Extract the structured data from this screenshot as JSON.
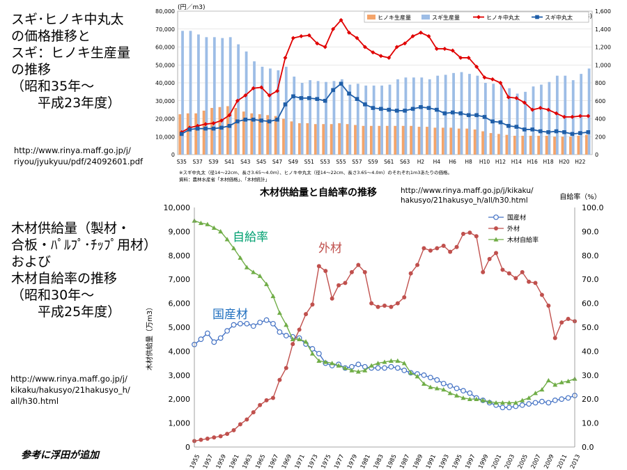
{
  "slide": {
    "top_title": "スギ･ヒノキ中丸太\nの価格推移と\nスギ：ヒノキ生産量\nの推移\n（昭和35年～\n　　平成23年度）",
    "top_url": "http://www.rinya.maff.go.jp/j/\nriyou/jyukyuu/pdf/24092601.pdf",
    "bottom_title": "木材供給量（製材・\n合板・ﾊﾟﾙﾌﾟ･ﾁｯﾌﾟ用材）\nおよび\n木材自給率の推移\n（昭和30年～\n　　平成25年度）",
    "bottom_url": "http://www.rinya.maff.go.jp/j/\nkikaku/hakusyo/21hakusyo_h/\nall/h30.html",
    "footer_note": "参考に浮田が追加",
    "middle_url": "http://www.rinya.maff.go.jp/j/kikaku/\nhakusyo/21hakusyo_h/all/h30.html"
  },
  "chart_data": [
    {
      "type": "bar",
      "left_unit": "(円／m3)",
      "right_unit": "(万m3)",
      "left_ylim": [
        0,
        80000
      ],
      "right_ylim": [
        0,
        1600
      ],
      "left_ticks": [
        "0",
        "10,000",
        "20,000",
        "30,000",
        "40,000",
        "50,000",
        "60,000",
        "70,000",
        "80,000"
      ],
      "right_ticks": [
        "0",
        "200",
        "400",
        "600",
        "800",
        "1,000",
        "1,200",
        "1,400",
        "1,600"
      ],
      "categories": [
        "S35",
        "S36",
        "S37",
        "S38",
        "S39",
        "S40",
        "S41",
        "S42",
        "S43",
        "S44",
        "S45",
        "S46",
        "S47",
        "S48",
        "S49",
        "S50",
        "S51",
        "S52",
        "S53",
        "S54",
        "S55",
        "S56",
        "S57",
        "S58",
        "S59",
        "S60",
        "S61",
        "S62",
        "S63",
        "H1",
        "H2",
        "H3",
        "H4",
        "H5",
        "H6",
        "H7",
        "H8",
        "H9",
        "H10",
        "H11",
        "H12",
        "H13",
        "H14",
        "H15",
        "H16",
        "H17",
        "H18",
        "H19",
        "H20",
        "H21",
        "H22",
        "H23"
      ],
      "tick_labels": [
        "S35",
        "S37",
        "S39",
        "S41",
        "S43",
        "S45",
        "S47",
        "S49",
        "S51",
        "S53",
        "S55",
        "S57",
        "S59",
        "S61",
        "S63",
        "H2",
        "H4",
        "H6",
        "H8",
        "H10",
        "H12",
        "H14",
        "H16",
        "H18",
        "H20",
        "H22"
      ],
      "series": [
        {
          "name": "ヒノキ生産量",
          "kind": "bar",
          "axis": "right",
          "color": "#f4a46a",
          "values": [
            450,
            460,
            460,
            490,
            520,
            530,
            540,
            520,
            480,
            460,
            450,
            440,
            430,
            400,
            370,
            350,
            350,
            340,
            340,
            340,
            350,
            340,
            330,
            320,
            320,
            320,
            320,
            320,
            320,
            320,
            310,
            310,
            300,
            300,
            300,
            290,
            290,
            280,
            260,
            240,
            230,
            220,
            210,
            210,
            210,
            210,
            210,
            200,
            200,
            200,
            210,
            220
          ]
        },
        {
          "name": "スギ生産量",
          "kind": "bar",
          "axis": "right",
          "color": "#9dbde6",
          "values": [
            1380,
            1380,
            1340,
            1310,
            1310,
            1300,
            1310,
            1230,
            1150,
            1040,
            980,
            960,
            940,
            980,
            870,
            800,
            830,
            820,
            810,
            820,
            840,
            780,
            790,
            770,
            770,
            770,
            780,
            840,
            860,
            860,
            860,
            840,
            880,
            890,
            910,
            920,
            900,
            880,
            800,
            790,
            780,
            740,
            680,
            700,
            760,
            780,
            810,
            880,
            880,
            830,
            900,
            960
          ]
        },
        {
          "name": "ヒノキ中丸太",
          "kind": "line",
          "axis": "left",
          "color": "#e00000",
          "marker": "diamond",
          "values": [
            12500,
            15000,
            16000,
            17000,
            17500,
            19000,
            22000,
            30000,
            33000,
            37000,
            37500,
            33000,
            35500,
            54000,
            65000,
            66000,
            66500,
            62000,
            60000,
            70000,
            75000,
            68000,
            65000,
            60000,
            57000,
            55000,
            54000,
            60000,
            62000,
            66000,
            68000,
            66000,
            59000,
            59000,
            58000,
            54000,
            54000,
            49000,
            43000,
            42000,
            40000,
            32000,
            31500,
            29000,
            25000,
            26000,
            25000,
            23000,
            21000,
            21000,
            21500,
            21500
          ]
        },
        {
          "name": "スギ中丸太",
          "kind": "line",
          "axis": "left",
          "color": "#1f5ea8",
          "marker": "square",
          "values": [
            11500,
            14000,
            14500,
            14500,
            14500,
            15000,
            16000,
            18500,
            19500,
            19500,
            19000,
            18500,
            19500,
            28000,
            32500,
            31500,
            31500,
            31000,
            30000,
            36000,
            39500,
            34000,
            31000,
            28000,
            26000,
            25500,
            25000,
            24500,
            24500,
            25500,
            26500,
            26000,
            25000,
            23000,
            23500,
            23000,
            22000,
            22000,
            21000,
            18500,
            18000,
            16000,
            15500,
            14000,
            14000,
            13000,
            12500,
            13000,
            12500,
            11500,
            12000,
            12500
          ]
        }
      ],
      "footnote_1": "※スギ中丸太（径14～22cm、長さ3.65～4.0m）、ヒノキ中丸太（径14～22cm、長さ3.65～4.0m）のそれぞれ1m3あたりの価格。",
      "footnote_2": "資料：農林水産省「木材価格」、「木材統計」"
    },
    {
      "type": "line",
      "title": "木材供給量と自給率の推移",
      "ylabel": "木材供給量（万m3）",
      "right_label": "自給率（%）",
      "left_ylim": [
        0,
        10000
      ],
      "right_ylim": [
        0,
        100
      ],
      "left_ticks": [
        "0",
        "1,000",
        "2,000",
        "3,000",
        "4,000",
        "5,000",
        "6,000",
        "7,000",
        "8,000",
        "9,000",
        "10,000"
      ],
      "right_ticks": [
        "0.0",
        "10.0",
        "20.0",
        "30.0",
        "40.0",
        "50.0",
        "60.0",
        "70.0",
        "80.0",
        "90.0",
        "100.0"
      ],
      "x": [
        1955,
        1956,
        1957,
        1958,
        1959,
        1960,
        1961,
        1962,
        1963,
        1964,
        1965,
        1966,
        1967,
        1968,
        1969,
        1970,
        1971,
        1972,
        1973,
        1974,
        1975,
        1976,
        1977,
        1978,
        1979,
        1980,
        1981,
        1982,
        1983,
        1984,
        1985,
        1986,
        1987,
        1988,
        1989,
        1990,
        1991,
        1992,
        1993,
        1994,
        1995,
        1996,
        1997,
        1998,
        1999,
        2000,
        2001,
        2002,
        2003,
        2004,
        2005,
        2006,
        2007,
        2008,
        2009,
        2010,
        2011,
        2012,
        2013
      ],
      "tick_labels": [
        "1955",
        "1957",
        "1959",
        "1961",
        "1963",
        "1965",
        "1967",
        "1969",
        "1971",
        "1973",
        "1975",
        "1977",
        "1979",
        "1981",
        "1983",
        "1985",
        "1987",
        "1989",
        "1991",
        "1993",
        "1995",
        "1997",
        "1999",
        "2001",
        "2003",
        "2005",
        "2007",
        "2009",
        "2011",
        "2013"
      ],
      "series": [
        {
          "name": "国産材",
          "axis": "left",
          "color": "#4472c4",
          "marker": "open-circle",
          "label_color": "#1f6fbf",
          "values": [
            4280,
            4500,
            4750,
            4380,
            4550,
            4850,
            5100,
            5150,
            5150,
            5050,
            5200,
            5300,
            5150,
            4800,
            4650,
            4600,
            4550,
            4300,
            4100,
            3900,
            3500,
            3400,
            3450,
            3300,
            3350,
            3450,
            3350,
            3300,
            3300,
            3300,
            3350,
            3300,
            3200,
            3100,
            3050,
            3000,
            2900,
            2800,
            2650,
            2550,
            2450,
            2350,
            2250,
            2050,
            1950,
            1850,
            1750,
            1650,
            1650,
            1700,
            1750,
            1800,
            1850,
            1900,
            1850,
            1950,
            2000,
            2050,
            2150
          ]
        },
        {
          "name": "外材",
          "axis": "left",
          "color": "#c0504d",
          "marker": "circle",
          "label_color": "#c0504d",
          "values": [
            250,
            300,
            350,
            400,
            450,
            550,
            700,
            950,
            1150,
            1450,
            1750,
            1950,
            2050,
            2800,
            3300,
            4300,
            4900,
            5550,
            5950,
            7550,
            7350,
            6200,
            6750,
            6850,
            7300,
            7600,
            7300,
            6000,
            5850,
            5900,
            5850,
            6000,
            6250,
            7250,
            7600,
            8300,
            8200,
            8300,
            8400,
            8150,
            8350,
            8900,
            8950,
            8800,
            7300,
            7850,
            8100,
            7400,
            7250,
            7050,
            7300,
            6900,
            6850,
            6350,
            5900,
            4550,
            5200,
            5350,
            5250
          ]
        },
        {
          "name": "木材自給率",
          "axis": "right",
          "color": "#70ad47",
          "marker": "triangle",
          "label_color": "#00a070",
          "values": [
            94.5,
            93.5,
            93.0,
            91.5,
            90.0,
            86.7,
            83.0,
            79.0,
            75.0,
            73.0,
            71.4,
            68.0,
            63.0,
            56.0,
            51.0,
            45.0,
            45.0,
            44.0,
            39.0,
            36.0,
            35.5,
            35.0,
            34.0,
            33.0,
            32.0,
            31.5,
            32.0,
            34.0,
            35.0,
            35.5,
            36.0,
            36.0,
            35.0,
            31.0,
            29.5,
            26.4,
            25.0,
            24.5,
            24.0,
            22.5,
            21.5,
            20.5,
            20.0,
            20.0,
            19.5,
            18.9,
            18.5,
            18.5,
            18.5,
            18.5,
            19.5,
            20.5,
            22.5,
            24.0,
            27.8,
            26.0,
            27.0,
            27.5,
            28.5
          ]
        }
      ],
      "inline_labels": [
        "自給率",
        "外材",
        "国産材"
      ]
    }
  ]
}
